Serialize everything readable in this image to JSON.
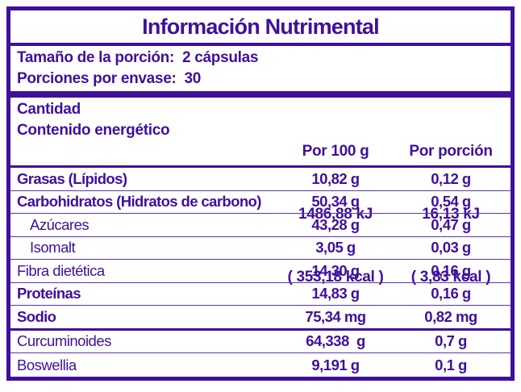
{
  "colors": {
    "purple": "#40109A",
    "thin_line": "#5b34ad",
    "background": "#ffffff"
  },
  "title": "Información Nutrimental",
  "serving": {
    "size_label": "Tamaño de la porción:",
    "size_value": "2 cápsulas",
    "count_label": "Porciones por envase:",
    "count_value": "30"
  },
  "header": {
    "amount_label": "Cantidad",
    "energy_label": "Contenido energético",
    "per100": {
      "label": "Por 100 g",
      "kj": "1486,88 kJ",
      "kcal": "( 353,18 kcal )"
    },
    "portion": {
      "label": "Por porción",
      "kj": "16,13 kJ",
      "kcal": "( 3,83 kcal )"
    }
  },
  "rows": [
    {
      "label": "Grasas (Lípidos)",
      "per100": "10,82 g",
      "portion": "0,12 g"
    },
    {
      "label": "Carbohidratos (Hidratos de carbono)",
      "per100": "50,34 g",
      "portion": "0,54 g"
    },
    {
      "label": "Azúcares",
      "per100": "43,28 g",
      "portion": "0,47 g"
    },
    {
      "label": "Isomalt",
      "per100": "3,05 g",
      "portion": "0,03 g"
    },
    {
      "label": "Fibra dietética",
      "per100": "14,30 g",
      "portion": "0,16 g"
    },
    {
      "label": "Proteínas",
      "per100": "14,83 g",
      "portion": "0,16 g"
    },
    {
      "label": "Sodio",
      "per100": "75,34 mg",
      "portion": "0,82 mg"
    },
    {
      "label": "Curcuminoides",
      "per100": "64,338  g",
      "portion": "0,7 g"
    },
    {
      "label": "Boswellia",
      "per100": "9,191 g",
      "portion": "0,1 g"
    }
  ]
}
